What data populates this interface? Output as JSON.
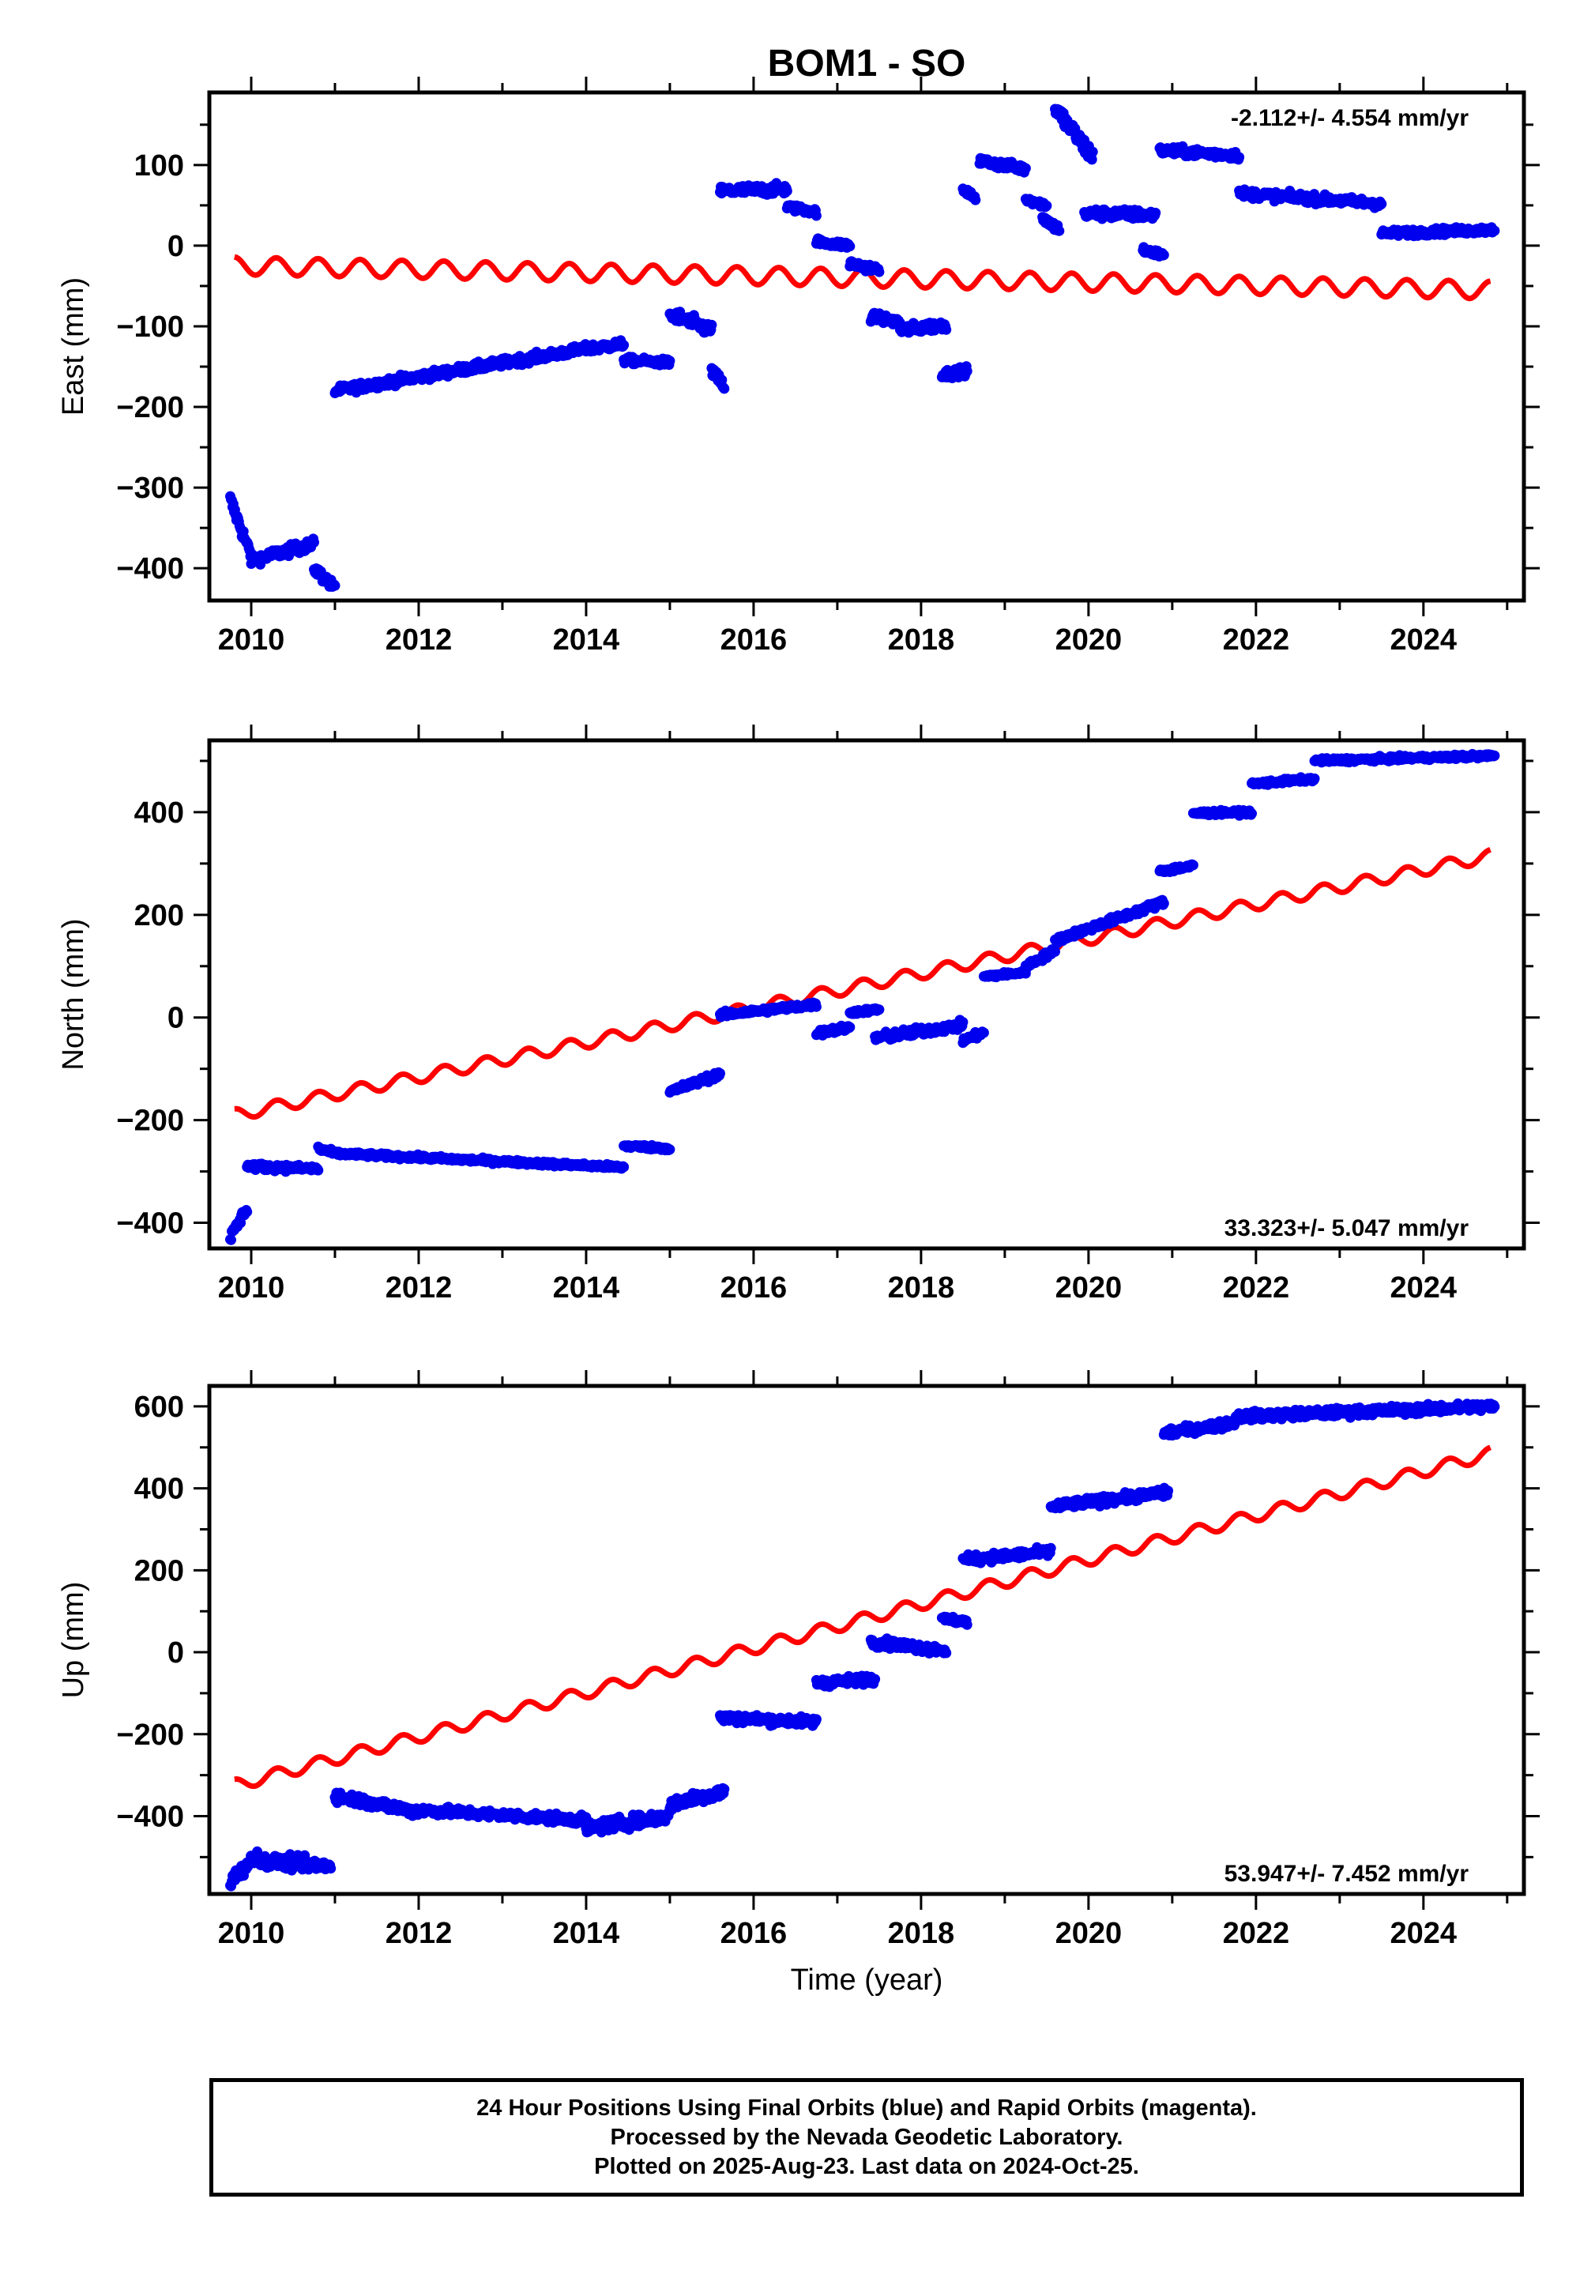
{
  "title": "BOM1 - SO",
  "xlabel": "Time (year)",
  "colors": {
    "final": "#0000ee",
    "model": "#ff0000",
    "rapid": "#ff00ff"
  },
  "footer": {
    "line1": "24 Hour Positions Using Final Orbits (blue) and Rapid Orbits (magenta).",
    "line2": "Processed by the Nevada Geodetic Laboratory.",
    "line3": "Plotted on 2025-Aug-23. Last data on 2024-Oct-25."
  },
  "chart_data": [
    {
      "type": "scatter",
      "ylabel": "East (mm)",
      "rate_label": "-2.112+/- 4.554 mm/yr",
      "rate_position": "top-right",
      "xlim": [
        2009.5,
        2025.2
      ],
      "ylim": [
        -440,
        190
      ],
      "x_ticks": [
        2010,
        2012,
        2014,
        2016,
        2018,
        2020,
        2022,
        2024
      ],
      "y_ticks": [
        -400,
        -300,
        -200,
        -100,
        0,
        100
      ],
      "grid": false,
      "model": {
        "name": "",
        "start": [
          2009.8,
          -25
        ],
        "end": [
          2024.8,
          -55
        ],
        "amplitude": 11,
        "period_years": 0.5
      },
      "segments": [
        {
          "x": [
            2009.75,
            2010.0
          ],
          "y": [
            -315,
            -385
          ],
          "scatter": 8
        },
        {
          "x": [
            2010.0,
            2010.75
          ],
          "y": [
            -390,
            -370
          ],
          "scatter": 6
        },
        {
          "x": [
            2010.75,
            2011.0
          ],
          "y": [
            -400,
            -425
          ],
          "scatter": 6
        },
        {
          "x": [
            2011.0,
            2014.0
          ],
          "y": [
            -180,
            -128
          ],
          "scatter": 5
        },
        {
          "x": [
            2014.0,
            2014.45
          ],
          "y": [
            -128,
            -122
          ],
          "scatter": 5
        },
        {
          "x": [
            2014.45,
            2015.0
          ],
          "y": [
            -142,
            -145
          ],
          "scatter": 4
        },
        {
          "x": [
            2015.0,
            2015.5
          ],
          "y": [
            -85,
            -105
          ],
          "scatter": 8
        },
        {
          "x": [
            2015.5,
            2015.65
          ],
          "y": [
            -155,
            -175
          ],
          "scatter": 6
        },
        {
          "x": [
            2015.6,
            2016.4
          ],
          "y": [
            68,
            70
          ],
          "scatter": 6
        },
        {
          "x": [
            2016.4,
            2016.75
          ],
          "y": [
            48,
            42
          ],
          "scatter": 4
        },
        {
          "x": [
            2016.75,
            2017.15
          ],
          "y": [
            5,
            0
          ],
          "scatter": 4
        },
        {
          "x": [
            2017.15,
            2017.5
          ],
          "y": [
            -22,
            -30
          ],
          "scatter": 5
        },
        {
          "x": [
            2017.4,
            2017.75
          ],
          "y": [
            -88,
            -95
          ],
          "scatter": 5
        },
        {
          "x": [
            2017.75,
            2018.3
          ],
          "y": [
            -105,
            -98
          ],
          "scatter": 6
        },
        {
          "x": [
            2018.25,
            2018.55
          ],
          "y": [
            -160,
            -155
          ],
          "scatter": 5
        },
        {
          "x": [
            2018.5,
            2018.65
          ],
          "y": [
            68,
            60
          ],
          "scatter": 4
        },
        {
          "x": [
            2018.7,
            2019.25
          ],
          "y": [
            105,
            95
          ],
          "scatter": 5
        },
        {
          "x": [
            2019.25,
            2019.5
          ],
          "y": [
            58,
            50
          ],
          "scatter": 4
        },
        {
          "x": [
            2019.45,
            2019.65
          ],
          "y": [
            35,
            20
          ],
          "scatter": 5
        },
        {
          "x": [
            2019.6,
            2020.05
          ],
          "y": [
            170,
            110
          ],
          "scatter": 10
        },
        {
          "x": [
            2019.95,
            2020.8
          ],
          "y": [
            40,
            38
          ],
          "scatter": 6
        },
        {
          "x": [
            2020.65,
            2020.9
          ],
          "y": [
            -5,
            -12
          ],
          "scatter": 4
        },
        {
          "x": [
            2020.85,
            2021.8
          ],
          "y": [
            118,
            112
          ],
          "scatter": 5
        },
        {
          "x": [
            2021.8,
            2023.5
          ],
          "y": [
            65,
            52
          ],
          "scatter": 5
        },
        {
          "x": [
            2023.5,
            2024.85
          ],
          "y": [
            15,
            20
          ],
          "scatter": 4
        }
      ]
    },
    {
      "type": "scatter",
      "ylabel": "North (mm)",
      "rate_label": "33.323+/- 5.047 mm/yr",
      "rate_position": "bottom-right",
      "xlim": [
        2009.5,
        2025.2
      ],
      "ylim": [
        -450,
        540
      ],
      "x_ticks": [
        2010,
        2012,
        2014,
        2016,
        2018,
        2020,
        2022,
        2024
      ],
      "y_ticks": [
        -400,
        -200,
        0,
        200,
        400
      ],
      "grid": false,
      "model": {
        "name": "",
        "start": [
          2009.8,
          -190
        ],
        "end": [
          2024.8,
          315
        ],
        "amplitude": 12,
        "period_years": 0.5
      },
      "segments": [
        {
          "x": [
            2009.75,
            2009.95
          ],
          "y": [
            -430,
            -370
          ],
          "scatter": 10
        },
        {
          "x": [
            2009.95,
            2010.8
          ],
          "y": [
            -290,
            -295
          ],
          "scatter": 6
        },
        {
          "x": [
            2010.8,
            2011.0
          ],
          "y": [
            -255,
            -265
          ],
          "scatter": 5
        },
        {
          "x": [
            2011.0,
            2014.45
          ],
          "y": [
            -265,
            -292
          ],
          "scatter": 4
        },
        {
          "x": [
            2014.45,
            2015.0
          ],
          "y": [
            -250,
            -255
          ],
          "scatter": 4
        },
        {
          "x": [
            2015.0,
            2015.6
          ],
          "y": [
            -145,
            -110
          ],
          "scatter": 6
        },
        {
          "x": [
            2015.6,
            2016.75
          ],
          "y": [
            5,
            25
          ],
          "scatter": 5
        },
        {
          "x": [
            2016.75,
            2017.15
          ],
          "y": [
            -30,
            -20
          ],
          "scatter": 6
        },
        {
          "x": [
            2017.15,
            2017.5
          ],
          "y": [
            10,
            15
          ],
          "scatter": 4
        },
        {
          "x": [
            2017.45,
            2018.5
          ],
          "y": [
            -40,
            -15
          ],
          "scatter": 8
        },
        {
          "x": [
            2018.5,
            2018.75
          ],
          "y": [
            -45,
            -30
          ],
          "scatter": 6
        },
        {
          "x": [
            2018.75,
            2019.25
          ],
          "y": [
            80,
            88
          ],
          "scatter": 4
        },
        {
          "x": [
            2019.25,
            2019.6
          ],
          "y": [
            100,
            130
          ],
          "scatter": 6
        },
        {
          "x": [
            2019.6,
            2020.9
          ],
          "y": [
            150,
            225
          ],
          "scatter": 6
        },
        {
          "x": [
            2020.85,
            2021.25
          ],
          "y": [
            285,
            295
          ],
          "scatter": 5
        },
        {
          "x": [
            2021.25,
            2021.95
          ],
          "y": [
            398,
            400
          ],
          "scatter": 4
        },
        {
          "x": [
            2021.95,
            2022.7
          ],
          "y": [
            455,
            465
          ],
          "scatter": 4
        },
        {
          "x": [
            2022.7,
            2024.85
          ],
          "y": [
            500,
            510
          ],
          "scatter": 4
        }
      ]
    },
    {
      "type": "scatter",
      "ylabel": "Up (mm)",
      "rate_label": "53.947+/- 7.452 mm/yr",
      "rate_position": "bottom-right",
      "xlim": [
        2009.5,
        2025.2
      ],
      "ylim": [
        -590,
        650
      ],
      "x_ticks": [
        2010,
        2012,
        2014,
        2016,
        2018,
        2020,
        2022,
        2024
      ],
      "y_ticks": [
        -400,
        -200,
        0,
        200,
        400,
        600
      ],
      "grid": false,
      "model": {
        "name": "",
        "start": [
          2009.8,
          -325
        ],
        "end": [
          2024.8,
          485
        ],
        "amplitude": 15,
        "period_years": 0.5
      },
      "segments": [
        {
          "x": [
            2009.75,
            2010.1
          ],
          "y": [
            -560,
            -490
          ],
          "scatter": 15
        },
        {
          "x": [
            2010.1,
            2010.95
          ],
          "y": [
            -510,
            -520
          ],
          "scatter": 15
        },
        {
          "x": [
            2011.0,
            2012.0
          ],
          "y": [
            -350,
            -390
          ],
          "scatter": 12
        },
        {
          "x": [
            2012.0,
            2014.0
          ],
          "y": [
            -385,
            -410
          ],
          "scatter": 10
        },
        {
          "x": [
            2014.0,
            2015.0
          ],
          "y": [
            -430,
            -400
          ],
          "scatter": 14
        },
        {
          "x": [
            2015.0,
            2015.65
          ],
          "y": [
            -370,
            -340
          ],
          "scatter": 15
        },
        {
          "x": [
            2015.6,
            2016.75
          ],
          "y": [
            -160,
            -170
          ],
          "scatter": 10
        },
        {
          "x": [
            2016.75,
            2017.45
          ],
          "y": [
            -75,
            -65
          ],
          "scatter": 10
        },
        {
          "x": [
            2017.4,
            2018.3
          ],
          "y": [
            25,
            5
          ],
          "scatter": 10
        },
        {
          "x": [
            2018.25,
            2018.55
          ],
          "y": [
            80,
            75
          ],
          "scatter": 8
        },
        {
          "x": [
            2018.5,
            2019.55
          ],
          "y": [
            225,
            245
          ],
          "scatter": 10
        },
        {
          "x": [
            2019.55,
            2020.95
          ],
          "y": [
            355,
            390
          ],
          "scatter": 10
        },
        {
          "x": [
            2020.9,
            2021.75
          ],
          "y": [
            535,
            560
          ],
          "scatter": 10
        },
        {
          "x": [
            2021.75,
            2024.85
          ],
          "y": [
            575,
            600
          ],
          "scatter": 10
        }
      ]
    }
  ]
}
